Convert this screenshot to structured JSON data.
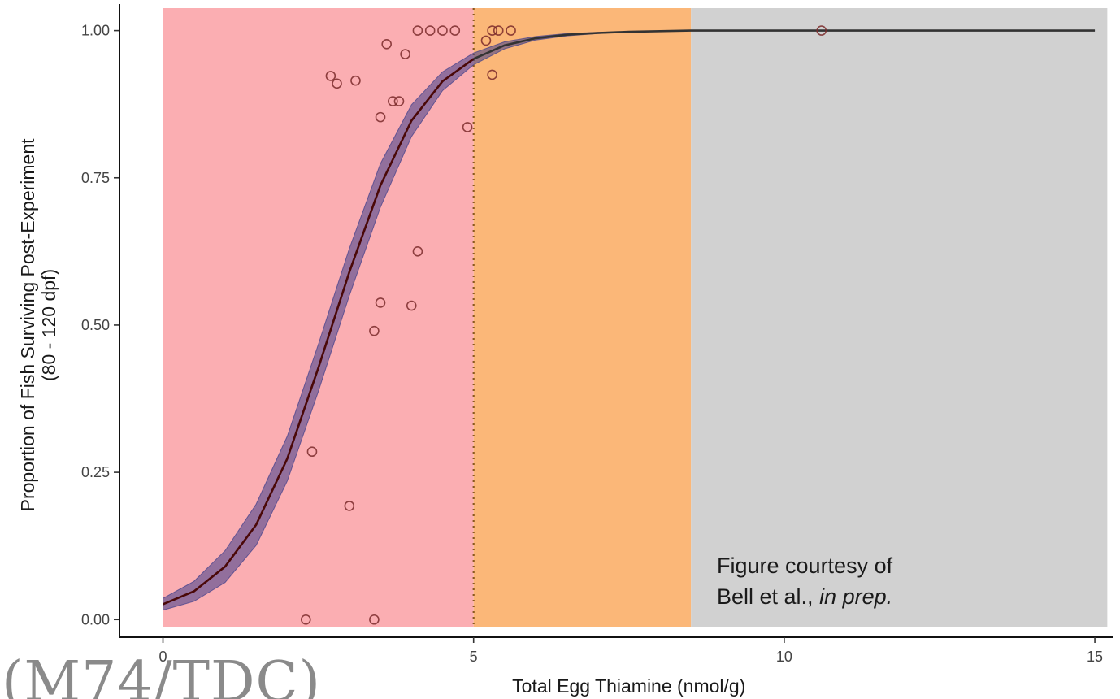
{
  "chart_data": {
    "type": "scatter",
    "xlabel": "Total Egg Thiamine (nmol/g)",
    "ylabel_lines": [
      "Proportion of Fish Surviving Post-Experiment",
      "(80 - 120 dpf)"
    ],
    "xlim": [
      -0.7,
      15.3
    ],
    "ylim": [
      -0.03,
      1.045
    ],
    "x_ticks": [
      0,
      5,
      10,
      15
    ],
    "x_tick_labels": [
      "0",
      "5",
      "10",
      "15"
    ],
    "y_ticks": [
      0,
      0.25,
      0.5,
      0.75,
      1.0
    ],
    "y_tick_labels": [
      "0.00",
      "0.25",
      "0.50",
      "0.75",
      "1.00"
    ],
    "grid": false,
    "threshold_line": {
      "x": 5,
      "style": "dotted",
      "color": "#8a5a1e"
    },
    "bands": [
      {
        "x0": 0,
        "x1": 5,
        "color": "#fbaeb2"
      },
      {
        "x0": 5,
        "x1": 8.5,
        "color": "#fbb778"
      },
      {
        "x0": 8.5,
        "x1": 15.2,
        "color": "#d1d1d1"
      }
    ],
    "points": [
      {
        "x": 2.3,
        "y": 0.0
      },
      {
        "x": 3.4,
        "y": 0.0
      },
      {
        "x": 2.4,
        "y": 0.285
      },
      {
        "x": 3.0,
        "y": 0.193
      },
      {
        "x": 3.4,
        "y": 0.49
      },
      {
        "x": 3.5,
        "y": 0.538
      },
      {
        "x": 4.0,
        "y": 0.533
      },
      {
        "x": 4.1,
        "y": 0.625
      },
      {
        "x": 3.5,
        "y": 0.853
      },
      {
        "x": 3.7,
        "y": 0.88
      },
      {
        "x": 3.8,
        "y": 0.88
      },
      {
        "x": 2.7,
        "y": 0.923
      },
      {
        "x": 2.8,
        "y": 0.91
      },
      {
        "x": 3.1,
        "y": 0.915
      },
      {
        "x": 3.6,
        "y": 0.977
      },
      {
        "x": 3.9,
        "y": 0.96
      },
      {
        "x": 4.1,
        "y": 1.0
      },
      {
        "x": 4.3,
        "y": 1.0
      },
      {
        "x": 4.5,
        "y": 1.0
      },
      {
        "x": 4.7,
        "y": 1.0
      },
      {
        "x": 4.9,
        "y": 0.836
      },
      {
        "x": 5.2,
        "y": 0.983
      },
      {
        "x": 5.3,
        "y": 1.0
      },
      {
        "x": 5.4,
        "y": 1.0
      },
      {
        "x": 5.6,
        "y": 1.0
      },
      {
        "x": 5.3,
        "y": 0.925
      },
      {
        "x": 10.6,
        "y": 1.0
      }
    ],
    "fit_curve": {
      "x": [
        0,
        0.5,
        1,
        1.5,
        2,
        2.5,
        3,
        3.5,
        4,
        4.5,
        5,
        5.5,
        6,
        6.5,
        7,
        7.5,
        8,
        8.5,
        9,
        10,
        11,
        12,
        13,
        14,
        15
      ],
      "y": [
        0.026,
        0.048,
        0.09,
        0.161,
        0.273,
        0.427,
        0.59,
        0.737,
        0.847,
        0.914,
        0.952,
        0.975,
        0.987,
        0.993,
        0.996,
        0.998,
        0.999,
        1.0,
        1.0,
        1.0,
        1.0,
        1.0,
        1.0,
        1.0,
        1.0
      ],
      "ci_halfwidth": [
        0.01,
        0.017,
        0.027,
        0.035,
        0.038,
        0.04,
        0.04,
        0.037,
        0.027,
        0.016,
        0.01,
        0.006,
        0.003,
        0.002,
        0.001,
        0,
        0,
        0,
        0,
        0,
        0,
        0,
        0,
        0,
        0
      ],
      "line_color": "#4a0808",
      "line_color_after_band": "#333333",
      "ribbon_color": "#3d3d8a"
    }
  },
  "credit": {
    "line1": "Figure courtesy of",
    "line2_plain": "Bell et al., ",
    "line2_italic": "in prep."
  },
  "overlay_text": "(M74/TDC)"
}
